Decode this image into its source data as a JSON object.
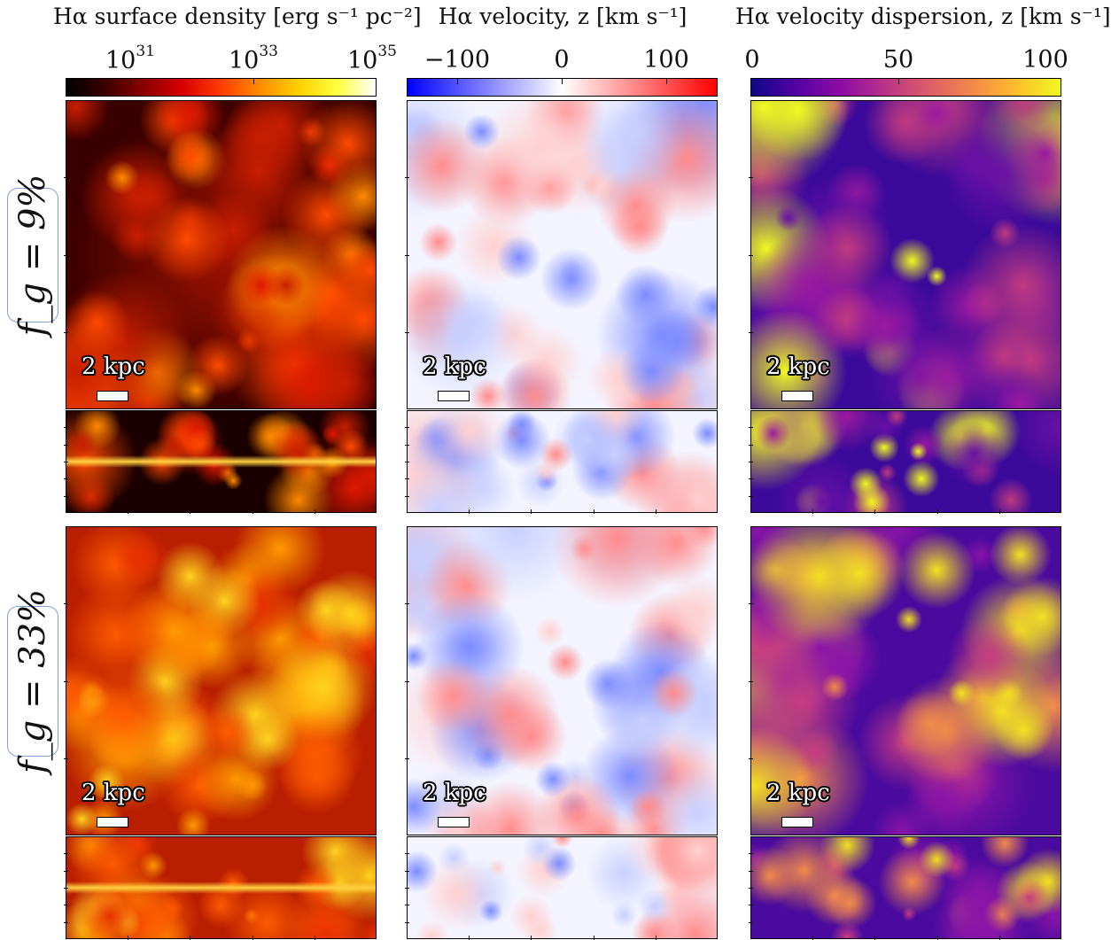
{
  "columns": [
    {
      "title": "Hα surface density [erg s⁻¹ pc⁻²]",
      "colorbar": {
        "colormap": "hot",
        "stops": [
          "#000000",
          "#3b0000",
          "#8a0000",
          "#d80000",
          "#ff3c00",
          "#ff8c00",
          "#ffd000",
          "#ffff3c",
          "#ffffff"
        ],
        "ticks": [
          {
            "base": "10",
            "exp": "31"
          },
          {
            "base": "10",
            "exp": "33"
          },
          {
            "base": "10",
            "exp": "35"
          }
        ]
      }
    },
    {
      "title": "Hα velocity, z [km s⁻¹]",
      "colorbar": {
        "colormap": "bwr",
        "stops": [
          "#0000ff",
          "#8080ff",
          "#ffffff",
          "#ff8080",
          "#ff0000"
        ],
        "ticks": [
          {
            "base": "−100",
            "exp": ""
          },
          {
            "base": "0",
            "exp": ""
          },
          {
            "base": "100",
            "exp": ""
          }
        ]
      }
    },
    {
      "title": "Hα velocity dispersion, z [km s⁻¹]",
      "colorbar": {
        "colormap": "plasma",
        "stops": [
          "#0d0887",
          "#5302a3",
          "#8b0aa5",
          "#b83289",
          "#db5c68",
          "#f48849",
          "#febd2a",
          "#f0f921"
        ],
        "ticks": [
          {
            "base": "0",
            "exp": ""
          },
          {
            "base": "50",
            "exp": ""
          },
          {
            "base": "100",
            "exp": ""
          }
        ]
      }
    }
  ],
  "rows": [
    {
      "label": "f_g = 9%"
    },
    {
      "label": "f_g = 33%"
    }
  ],
  "scale_bar_label": "2 kpc",
  "panel_colors": {
    "hot": {
      "base": "#1a0000",
      "blob": [
        "#c81e00",
        "#ff4a00",
        "#ff8a00",
        "#e01800"
      ]
    },
    "hot2": {
      "base": "#b81e00",
      "blob": [
        "#ff5a00",
        "#ff9a00",
        "#ffd21e",
        "#e83000"
      ]
    },
    "bwr": {
      "base": "#f4f4ff",
      "blob": [
        "#7c8cff",
        "#ff8c8c",
        "#c8d0ff",
        "#ffd0d0"
      ]
    },
    "plasma": {
      "base": "#3c0a9a",
      "blob": [
        "#6a10a6",
        "#9a1aa0",
        "#c03a80",
        "#f0f921"
      ]
    },
    "plasma2": {
      "base": "#4a0a9e",
      "blob": [
        "#8a14a8",
        "#c63c82",
        "#f08a4a",
        "#f4e021"
      ]
    }
  }
}
